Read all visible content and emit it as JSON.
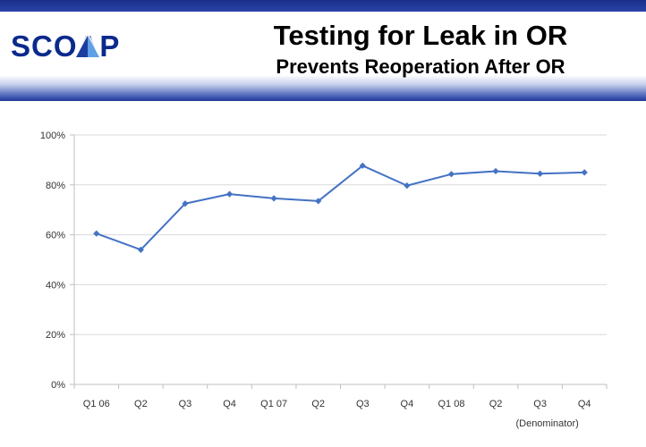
{
  "header": {
    "logo_text": "SCOAP",
    "title": "Testing for Leak in OR",
    "subtitle": "Prevents Reoperation After OR"
  },
  "colors": {
    "header_dark": "#1b2f8a",
    "logo": "#0b2a8c",
    "series_line": "#4472c4",
    "gridline": "#d9d9d9"
  },
  "chart_data": {
    "type": "line",
    "title": "",
    "xlabel": "",
    "ylabel": "",
    "categories": [
      "Q1 06",
      "Q2",
      "Q3",
      "Q4",
      "Q1 07",
      "Q2",
      "Q3",
      "Q4",
      "Q1 08",
      "Q2",
      "Q3",
      "Q4"
    ],
    "series": [
      {
        "values": [
          60.5,
          54,
          72.5,
          76.3,
          74.6,
          73.5,
          87.7,
          79.7,
          84.3,
          85.5,
          84.5,
          85
        ]
      }
    ],
    "y_ticks": [
      "0%",
      "20%",
      "40%",
      "60%",
      "80%",
      "100%"
    ],
    "ylim": [
      0,
      100
    ],
    "grid": true,
    "legend": "none",
    "annotation": "(Denominator)"
  }
}
